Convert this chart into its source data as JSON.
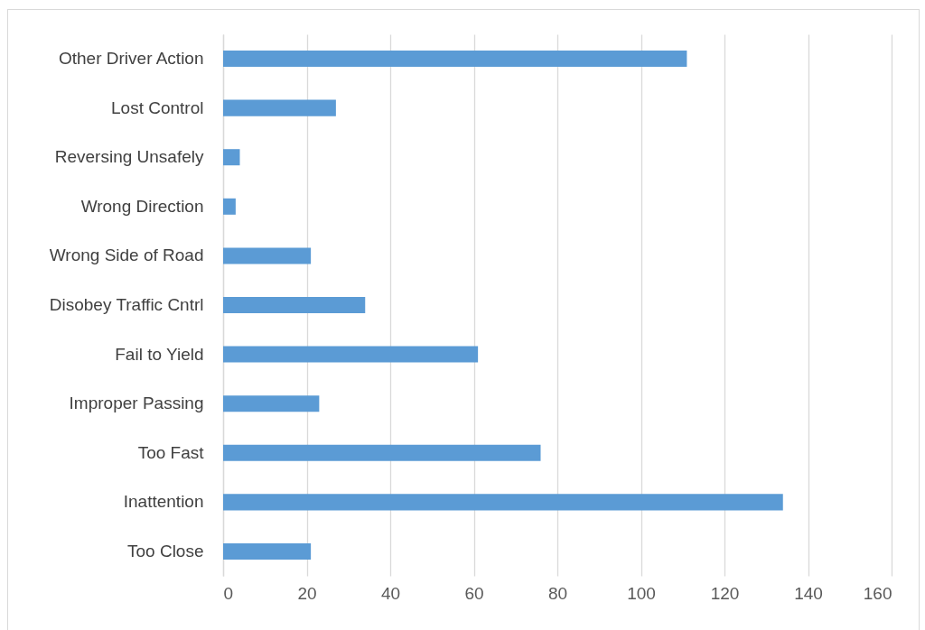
{
  "chart_data": {
    "type": "bar",
    "orientation": "horizontal",
    "categories": [
      "Other Driver Action",
      "Lost Control",
      "Reversing Unsafely",
      "Wrong Direction",
      "Wrong Side of Road",
      "Disobey Traffic Cntrl",
      "Fail to Yield",
      "Improper Passing",
      "Too Fast",
      "Inattention",
      "Too Close"
    ],
    "values": [
      111,
      27,
      4,
      3,
      21,
      34,
      61,
      23,
      76,
      134,
      21
    ],
    "color": "#5b9bd5",
    "xlim": [
      0,
      160
    ],
    "xticks": [
      0,
      20,
      40,
      60,
      80,
      100,
      120,
      140,
      160
    ],
    "grid": "x"
  }
}
